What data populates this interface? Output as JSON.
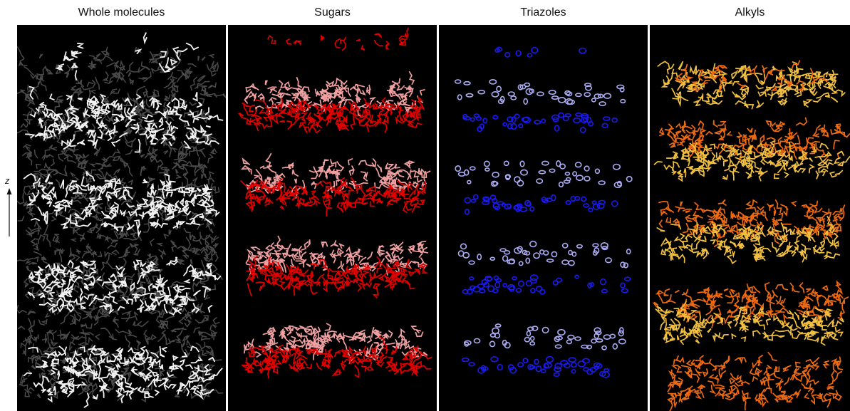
{
  "figure": {
    "panel_titles": [
      "Whole molecules",
      "Sugars",
      "Triazoles",
      "Alkyls"
    ],
    "axis_label": "z",
    "colors": {
      "background": "#000000",
      "whole_bright": "#f2f2f2",
      "whole_dim": "#4a4a4a",
      "sugar_dark": "#e00000",
      "sugar_light": "#f0a0a0",
      "triazole_dark": "#1a1aee",
      "triazole_light": "#aaaaf2",
      "alkyl_orange": "#ee6a10",
      "alkyl_yellow": "#f2c040"
    }
  }
}
